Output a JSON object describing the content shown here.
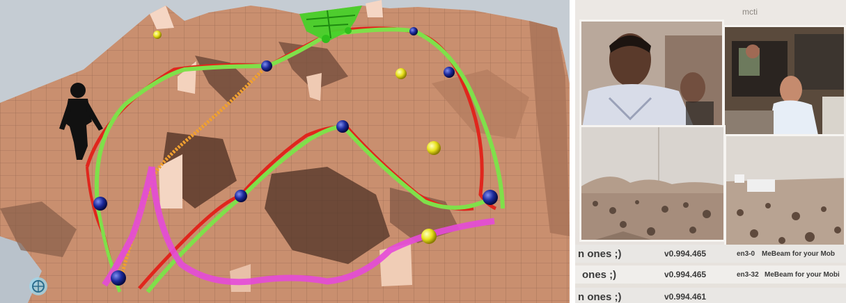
{
  "right_panel": {
    "window_title": "mcti",
    "log_rows": [
      {
        "message": "n ones ;)",
        "version": "v0.994.465",
        "host": "en3-0",
        "note": "MeBeam for your Mob"
      },
      {
        "message": "ones ;)",
        "version": "v0.994.465",
        "host": "en3-32",
        "note": "MeBeam for your Mobi"
      },
      {
        "message": "n ones ;)",
        "version": "v0.994.461",
        "host": "",
        "note": ""
      }
    ]
  },
  "colors": {
    "terrain": "#c98f6f",
    "terrain_dark": "#6f4a3a",
    "path_red": "#e0261d",
    "path_green": "#7fe04a",
    "path_orange": "#f0a030",
    "path_magenta": "#e44ad8",
    "waypoint_blue": "#1c2a9c",
    "waypoint_yellow": "#e8e21c"
  }
}
